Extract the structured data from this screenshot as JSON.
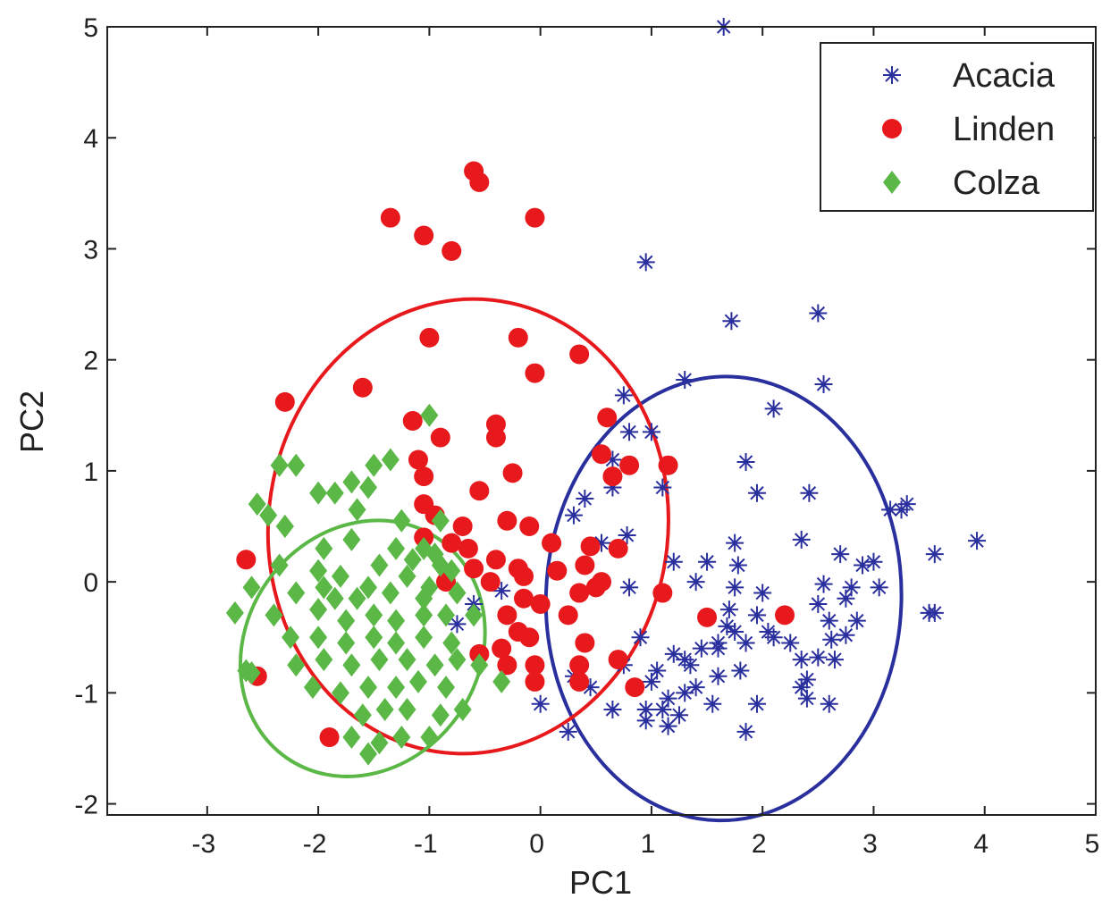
{
  "chart_data": {
    "type": "scatter",
    "xlabel": "PC1",
    "ylabel": "PC2",
    "xlim": [
      -3.9,
      5.0
    ],
    "ylim": [
      -2.1,
      5.0
    ],
    "xticks": [
      "-3",
      "-2",
      "-1",
      "0",
      "1",
      "2",
      "3",
      "4",
      "5"
    ],
    "yticks": [
      "-2",
      "-1",
      "0",
      "1",
      "2",
      "3",
      "4",
      "5"
    ],
    "grid": false,
    "legend_position": "top-right",
    "series": [
      {
        "name": "Acacia",
        "marker": "asterisk",
        "color": "#2a2f9e",
        "ellipse": {
          "cx": 1.65,
          "cy": -0.15,
          "rx": 1.6,
          "ry": 2.0,
          "angle": -2
        },
        "points": [
          [
            1.65,
            5.0
          ],
          [
            0.95,
            2.88
          ],
          [
            1.72,
            2.35
          ],
          [
            2.5,
            2.42
          ],
          [
            1.3,
            1.82
          ],
          [
            2.55,
            1.78
          ],
          [
            2.1,
            1.56
          ],
          [
            0.75,
            1.68
          ],
          [
            0.8,
            1.35
          ],
          [
            0.65,
            1.1
          ],
          [
            1.1,
            0.85
          ],
          [
            1.85,
            1.08
          ],
          [
            0.65,
            0.85
          ],
          [
            0.4,
            0.75
          ],
          [
            0.3,
            0.6
          ],
          [
            0.55,
            0.35
          ],
          [
            0.78,
            0.42
          ],
          [
            1.95,
            0.8
          ],
          [
            2.42,
            0.8
          ],
          [
            3.15,
            0.65
          ],
          [
            3.3,
            0.7
          ],
          [
            3.93,
            0.37
          ],
          [
            3.55,
            0.25
          ],
          [
            2.35,
            0.38
          ],
          [
            1.75,
            0.35
          ],
          [
            1.5,
            0.18
          ],
          [
            1.2,
            0.18
          ],
          [
            1.78,
            0.15
          ],
          [
            2.7,
            0.25
          ],
          [
            2.55,
            -0.02
          ],
          [
            3.0,
            0.18
          ],
          [
            1.75,
            -0.05
          ],
          [
            0.8,
            -0.05
          ],
          [
            2.0,
            -0.1
          ],
          [
            2.8,
            -0.05
          ],
          [
            3.05,
            -0.05
          ],
          [
            2.6,
            -0.35
          ],
          [
            2.75,
            -0.15
          ],
          [
            2.5,
            -0.2
          ],
          [
            1.7,
            -0.25
          ],
          [
            1.95,
            -0.3
          ],
          [
            1.68,
            -0.4
          ],
          [
            1.75,
            -0.45
          ],
          [
            2.05,
            -0.45
          ],
          [
            2.1,
            -0.5
          ],
          [
            2.75,
            -0.48
          ],
          [
            2.62,
            -0.52
          ],
          [
            3.5,
            -0.28
          ],
          [
            3.55,
            -0.28
          ],
          [
            1.85,
            -0.55
          ],
          [
            1.45,
            -0.6
          ],
          [
            1.6,
            -0.55
          ],
          [
            0.9,
            -0.5
          ],
          [
            0.75,
            -0.75
          ],
          [
            1.2,
            -0.65
          ],
          [
            1.3,
            -0.7
          ],
          [
            1.35,
            -0.75
          ],
          [
            1.05,
            -0.8
          ],
          [
            1.8,
            -0.8
          ],
          [
            2.35,
            -0.7
          ],
          [
            2.5,
            -0.68
          ],
          [
            2.65,
            -0.7
          ],
          [
            1.4,
            -0.95
          ],
          [
            1.6,
            -0.85
          ],
          [
            0.3,
            -0.85
          ],
          [
            0.45,
            -0.95
          ],
          [
            0.65,
            -1.15
          ],
          [
            1.0,
            -0.9
          ],
          [
            1.15,
            -1.05
          ],
          [
            1.3,
            -1.0
          ],
          [
            2.35,
            -0.95
          ],
          [
            0.95,
            -1.15
          ],
          [
            1.1,
            -1.15
          ],
          [
            1.25,
            -1.2
          ],
          [
            1.55,
            -1.1
          ],
          [
            1.95,
            -1.1
          ],
          [
            2.4,
            -1.05
          ],
          [
            2.6,
            -1.1
          ],
          [
            0.95,
            -1.25
          ],
          [
            1.15,
            -1.3
          ],
          [
            1.85,
            -1.35
          ],
          [
            0.25,
            -1.35
          ],
          [
            0.0,
            -1.1
          ],
          [
            -0.35,
            -0.08
          ],
          [
            -0.6,
            -0.2
          ],
          [
            -0.75,
            -0.38
          ],
          [
            1.6,
            -0.6
          ],
          [
            2.25,
            -0.55
          ],
          [
            2.4,
            -0.88
          ],
          [
            1.4,
            0.0
          ],
          [
            3.25,
            0.65
          ],
          [
            2.9,
            0.15
          ],
          [
            1.0,
            1.35
          ],
          [
            2.85,
            -0.35
          ]
        ]
      },
      {
        "name": "Linden",
        "marker": "circle",
        "color": "#e8191c",
        "ellipse": {
          "cx": -0.65,
          "cy": 0.5,
          "rx": 1.8,
          "ry": 2.05,
          "angle": -6
        },
        "points": [
          [
            -0.6,
            3.7
          ],
          [
            -0.55,
            3.6
          ],
          [
            -1.35,
            3.28
          ],
          [
            -1.05,
            3.12
          ],
          [
            -0.8,
            2.98
          ],
          [
            -0.05,
            3.28
          ],
          [
            -1.0,
            2.2
          ],
          [
            -0.2,
            2.2
          ],
          [
            0.35,
            2.05
          ],
          [
            -0.05,
            1.88
          ],
          [
            -1.6,
            1.75
          ],
          [
            -2.3,
            1.62
          ],
          [
            -1.15,
            1.45
          ],
          [
            -0.9,
            1.3
          ],
          [
            -0.4,
            1.42
          ],
          [
            -0.4,
            1.3
          ],
          [
            0.6,
            1.48
          ],
          [
            0.55,
            1.15
          ],
          [
            0.8,
            1.05
          ],
          [
            1.15,
            1.05
          ],
          [
            -1.1,
            1.1
          ],
          [
            -1.05,
            0.95
          ],
          [
            -0.25,
            0.98
          ],
          [
            -0.55,
            0.82
          ],
          [
            -1.05,
            0.7
          ],
          [
            -0.95,
            0.6
          ],
          [
            -0.7,
            0.5
          ],
          [
            -0.3,
            0.55
          ],
          [
            -0.1,
            0.5
          ],
          [
            -0.8,
            0.35
          ],
          [
            -1.05,
            0.4
          ],
          [
            -0.65,
            0.3
          ],
          [
            -0.4,
            0.2
          ],
          [
            0.1,
            0.35
          ],
          [
            0.45,
            0.32
          ],
          [
            0.7,
            0.3
          ],
          [
            -0.45,
            0.0
          ],
          [
            -0.2,
            0.12
          ],
          [
            -0.15,
            0.05
          ],
          [
            0.15,
            0.1
          ],
          [
            0.4,
            0.15
          ],
          [
            0.55,
            0.0
          ],
          [
            -2.65,
            0.2
          ],
          [
            -0.15,
            -0.15
          ],
          [
            0.35,
            -0.1
          ],
          [
            0.5,
            -0.05
          ],
          [
            1.1,
            -0.1
          ],
          [
            -0.3,
            -0.3
          ],
          [
            0.25,
            -0.3
          ],
          [
            -0.2,
            -0.45
          ],
          [
            -0.1,
            -0.5
          ],
          [
            -0.35,
            -0.6
          ],
          [
            0.4,
            -0.55
          ],
          [
            1.5,
            -0.32
          ],
          [
            2.2,
            -0.3
          ],
          [
            -0.55,
            -0.65
          ],
          [
            -0.3,
            -0.75
          ],
          [
            -0.05,
            -0.75
          ],
          [
            0.35,
            -0.75
          ],
          [
            0.7,
            -0.7
          ],
          [
            -0.05,
            -0.9
          ],
          [
            0.35,
            -0.9
          ],
          [
            0.85,
            -0.95
          ],
          [
            -2.55,
            -0.85
          ],
          [
            -1.9,
            -1.4
          ],
          [
            -0.6,
            0.12
          ],
          [
            -0.85,
            0.0
          ],
          [
            0.0,
            -0.2
          ],
          [
            0.65,
            0.95
          ]
        ]
      },
      {
        "name": "Colza",
        "marker": "diamond",
        "color": "#5bb847",
        "ellipse": {
          "cx": -1.6,
          "cy": -0.6,
          "rx": 1.2,
          "ry": 1.05,
          "angle": 55
        },
        "points": [
          [
            -1.0,
            1.5
          ],
          [
            -2.35,
            1.05
          ],
          [
            -2.2,
            1.05
          ],
          [
            -1.5,
            1.05
          ],
          [
            -1.35,
            1.1
          ],
          [
            -1.7,
            0.9
          ],
          [
            -1.55,
            0.85
          ],
          [
            -2.0,
            0.8
          ],
          [
            -1.85,
            0.8
          ],
          [
            -2.55,
            0.7
          ],
          [
            -2.45,
            0.6
          ],
          [
            -2.3,
            0.5
          ],
          [
            -1.65,
            0.65
          ],
          [
            -1.25,
            0.55
          ],
          [
            -0.9,
            0.55
          ],
          [
            -1.95,
            0.3
          ],
          [
            -1.7,
            0.38
          ],
          [
            -1.3,
            0.3
          ],
          [
            -1.05,
            0.3
          ],
          [
            -2.35,
            0.15
          ],
          [
            -2.0,
            0.1
          ],
          [
            -1.8,
            0.05
          ],
          [
            -1.45,
            0.15
          ],
          [
            -1.2,
            0.05
          ],
          [
            -0.9,
            0.15
          ],
          [
            -0.8,
            0.1
          ],
          [
            -2.6,
            -0.05
          ],
          [
            -2.2,
            -0.1
          ],
          [
            -1.85,
            -0.15
          ],
          [
            -1.55,
            -0.05
          ],
          [
            -1.35,
            -0.1
          ],
          [
            -1.0,
            -0.05
          ],
          [
            -0.75,
            -0.1
          ],
          [
            -2.75,
            -0.28
          ],
          [
            -2.4,
            -0.3
          ],
          [
            -2.0,
            -0.25
          ],
          [
            -1.75,
            -0.35
          ],
          [
            -1.5,
            -0.3
          ],
          [
            -1.3,
            -0.35
          ],
          [
            -1.05,
            -0.3
          ],
          [
            -0.85,
            -0.3
          ],
          [
            -0.6,
            -0.3
          ],
          [
            -2.25,
            -0.5
          ],
          [
            -2.0,
            -0.5
          ],
          [
            -1.75,
            -0.55
          ],
          [
            -1.5,
            -0.5
          ],
          [
            -1.3,
            -0.55
          ],
          [
            -1.05,
            -0.5
          ],
          [
            -0.8,
            -0.55
          ],
          [
            -2.65,
            -0.8
          ],
          [
            -2.2,
            -0.75
          ],
          [
            -1.95,
            -0.7
          ],
          [
            -1.7,
            -0.75
          ],
          [
            -1.45,
            -0.7
          ],
          [
            -1.2,
            -0.7
          ],
          [
            -0.95,
            -0.75
          ],
          [
            -0.75,
            -0.7
          ],
          [
            -0.55,
            -0.75
          ],
          [
            -2.05,
            -0.95
          ],
          [
            -1.8,
            -1.0
          ],
          [
            -1.55,
            -0.95
          ],
          [
            -1.3,
            -0.95
          ],
          [
            -1.1,
            -0.9
          ],
          [
            -0.85,
            -0.95
          ],
          [
            -0.35,
            -0.9
          ],
          [
            -1.6,
            -1.2
          ],
          [
            -1.4,
            -1.15
          ],
          [
            -1.2,
            -1.15
          ],
          [
            -0.9,
            -1.2
          ],
          [
            -0.7,
            -1.15
          ],
          [
            -1.7,
            -1.4
          ],
          [
            -1.45,
            -1.45
          ],
          [
            -1.25,
            -1.4
          ],
          [
            -1.0,
            -1.4
          ],
          [
            -1.55,
            -1.55
          ],
          [
            -2.6,
            -0.82
          ],
          [
            -2.3,
            0.5
          ],
          [
            -1.95,
            -0.05
          ],
          [
            -1.65,
            -0.15
          ],
          [
            -1.15,
            0.2
          ],
          [
            -0.95,
            0.25
          ],
          [
            -1.05,
            -0.15
          ]
        ]
      }
    ]
  }
}
